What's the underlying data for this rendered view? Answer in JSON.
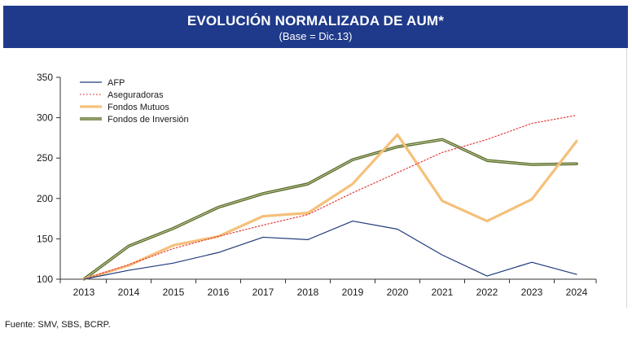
{
  "header": {
    "title": "EVOLUCIÓN NORMALIZADA DE AUM*",
    "subtitle": "(Base = Dic.13)"
  },
  "source": "Fuente: SMV, SBS, BCRP.",
  "colors": {
    "header_bg": "#1f3a8a",
    "afp": "#1f3a7a",
    "aseguradoras": "#e23a3a",
    "fondos_mutuos": "#f5c07a",
    "fondos_inversion": "#5a6b2a"
  },
  "chart_data": {
    "type": "line",
    "title": "EVOLUCIÓN NORMALIZADA DE AUM*",
    "subtitle": "(Base = Dic.13)",
    "xlabel": "",
    "ylabel": "",
    "ylim": [
      100,
      350
    ],
    "yticks": [
      100,
      150,
      200,
      250,
      300,
      350
    ],
    "grid": false,
    "legend_position": "top-left",
    "categories": [
      "2013",
      "2014",
      "2015",
      "2016",
      "2017",
      "2018",
      "2019",
      "2020",
      "2021",
      "2022",
      "2023",
      "2024"
    ],
    "series": [
      {
        "name": "AFP",
        "style": "solid-thin",
        "values": [
          100,
          111,
          120,
          133,
          152,
          149,
          172,
          162,
          130,
          104,
          121,
          106
        ]
      },
      {
        "name": "Aseguradoras",
        "style": "dotted",
        "values": [
          100,
          118,
          138,
          153,
          167,
          180,
          207,
          232,
          257,
          273,
          293,
          303
        ]
      },
      {
        "name": "Fondos Mutuos",
        "style": "thick-light",
        "values": [
          100,
          117,
          142,
          153,
          178,
          182,
          218,
          279,
          197,
          172,
          199,
          271
        ]
      },
      {
        "name": "Fondos de Inversión",
        "style": "double",
        "values": [
          100,
          141,
          163,
          189,
          206,
          218,
          248,
          264,
          273,
          247,
          242,
          243
        ]
      }
    ]
  }
}
